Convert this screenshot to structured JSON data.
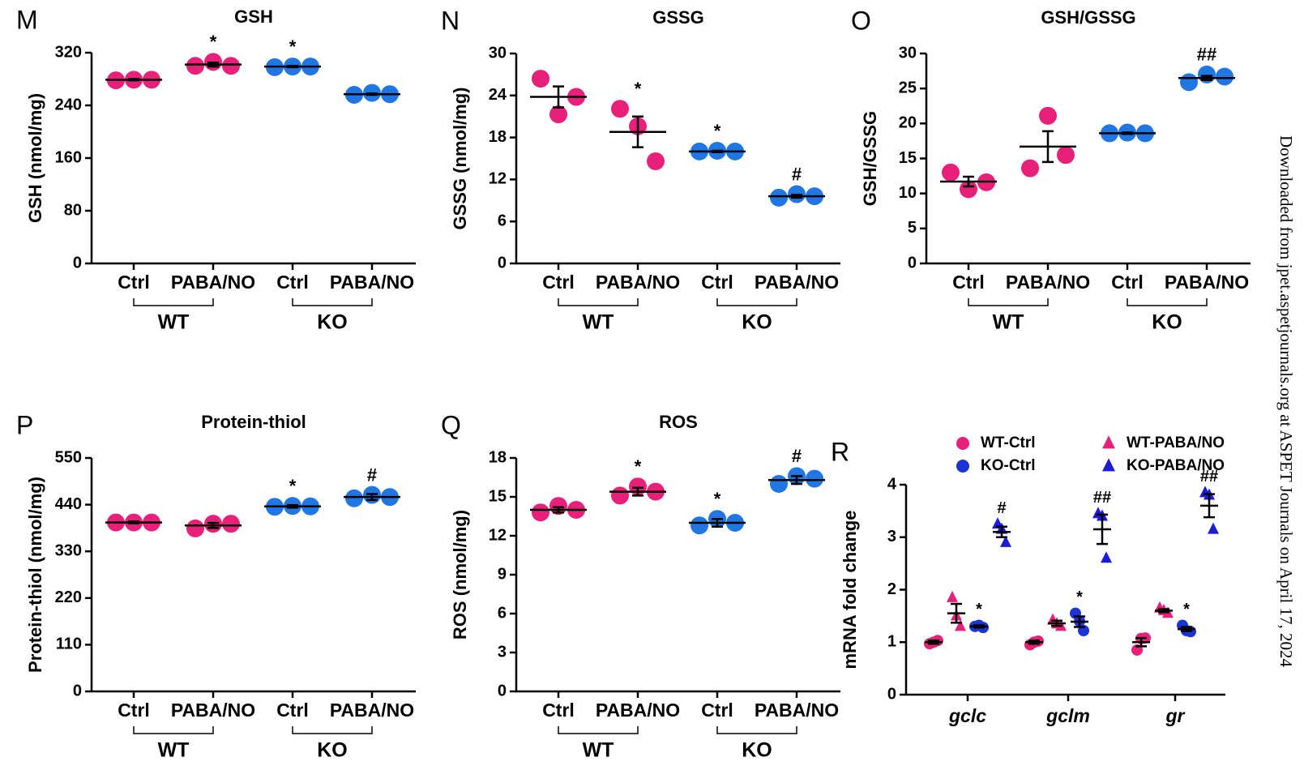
{
  "chart_data": [
    {
      "type": "dotplot",
      "panel": "M",
      "title": "GSH",
      "y_label": "GSH (nmol/mg)",
      "ylim": [
        0,
        320
      ],
      "yticks": [
        0,
        80,
        160,
        240,
        320
      ],
      "groups": [
        {
          "name": "WT",
          "color": "#e8207a",
          "categories": [
            "Ctrl",
            "PABA/NO"
          ],
          "points": [
            [
              278,
              279,
              279
            ],
            [
              300,
              306,
              300
            ]
          ],
          "mean": [
            279,
            302
          ],
          "sem": [
            1,
            3
          ],
          "marks": [
            null,
            "*"
          ]
        },
        {
          "name": "KO",
          "color": "#2077e4",
          "categories": [
            "Ctrl",
            "PABA/NO"
          ],
          "points": [
            [
              298,
              299,
              299
            ],
            [
              256,
              259,
              257
            ]
          ],
          "mean": [
            299,
            257
          ],
          "sem": [
            1,
            1
          ],
          "marks": [
            "*",
            null
          ]
        }
      ]
    },
    {
      "type": "dotplot",
      "panel": "N",
      "title": "GSSG",
      "y_label": "GSSG (nmol/mg)",
      "ylim": [
        0,
        30
      ],
      "yticks": [
        0,
        6,
        12,
        18,
        24,
        30
      ],
      "groups": [
        {
          "name": "WT",
          "color": "#e8207a",
          "categories": [
            "Ctrl",
            "PABA/NO"
          ],
          "points": [
            [
              26.4,
              21.3,
              23.8
            ],
            [
              22.1,
              19.6,
              14.6
            ]
          ],
          "mean": [
            23.8,
            18.8
          ],
          "sem": [
            1.5,
            2.2
          ],
          "marks": [
            null,
            "*"
          ]
        },
        {
          "name": "KO",
          "color": "#2077e4",
          "categories": [
            "Ctrl",
            "PABA/NO"
          ],
          "points": [
            [
              16.0,
              16.1,
              16.0
            ],
            [
              9.4,
              9.9,
              9.6
            ]
          ],
          "mean": [
            16.0,
            9.6
          ],
          "sem": [
            0.1,
            0.2
          ],
          "marks": [
            "*",
            "#"
          ]
        }
      ]
    },
    {
      "type": "dotplot",
      "panel": "O",
      "title": "GSH/GSSG",
      "y_label": "GSH/GSSG",
      "ylim": [
        0,
        30
      ],
      "yticks": [
        0,
        5,
        10,
        15,
        20,
        25,
        30
      ],
      "groups": [
        {
          "name": "WT",
          "color": "#e8207a",
          "categories": [
            "Ctrl",
            "PABA/NO"
          ],
          "points": [
            [
              13.0,
              10.6,
              11.6
            ],
            [
              13.6,
              21.1,
              15.5
            ]
          ],
          "mean": [
            11.7,
            16.7
          ],
          "sem": [
            0.7,
            2.2
          ],
          "marks": [
            null,
            null
          ]
        },
        {
          "name": "KO",
          "color": "#2077e4",
          "categories": [
            "Ctrl",
            "PABA/NO"
          ],
          "points": [
            [
              18.6,
              18.7,
              18.6
            ],
            [
              25.9,
              27.0,
              26.7
            ]
          ],
          "mean": [
            18.6,
            26.5
          ],
          "sem": [
            0.1,
            0.3
          ],
          "marks": [
            null,
            "##"
          ]
        }
      ]
    },
    {
      "type": "dotplot",
      "panel": "P",
      "title": "Protein-thiol",
      "y_label": "Protein-thiol (nmol/mg)",
      "ylim": [
        0,
        550
      ],
      "yticks": [
        0,
        110,
        220,
        330,
        440,
        550
      ],
      "groups": [
        {
          "name": "WT",
          "color": "#e8207a",
          "categories": [
            "Ctrl",
            "PABA/NO"
          ],
          "points": [
            [
              398,
              398,
              398
            ],
            [
              384,
              395,
              395
            ]
          ],
          "mean": [
            398,
            391
          ],
          "sem": [
            2,
            6
          ],
          "marks": [
            null,
            null
          ]
        },
        {
          "name": "KO",
          "color": "#2077e4",
          "categories": [
            "Ctrl",
            "PABA/NO"
          ],
          "points": [
            [
              435,
              437,
              436
            ],
            [
              455,
              463,
              458
            ]
          ],
          "mean": [
            436,
            458
          ],
          "sem": [
            3,
            7
          ],
          "marks": [
            "*",
            "#"
          ]
        }
      ]
    },
    {
      "type": "dotplot",
      "panel": "Q",
      "title": "ROS",
      "y_label": "ROS (nmol/mg)",
      "ylim": [
        0,
        18
      ],
      "yticks": [
        0,
        3,
        6,
        9,
        12,
        15,
        18
      ],
      "groups": [
        {
          "name": "WT",
          "color": "#e8207a",
          "categories": [
            "Ctrl",
            "PABA/NO"
          ],
          "points": [
            [
              13.8,
              14.3,
              14.0
            ],
            [
              15.1,
              15.8,
              15.4
            ]
          ],
          "mean": [
            14.0,
            15.4
          ],
          "sem": [
            0.2,
            0.3
          ],
          "marks": [
            null,
            "*"
          ]
        },
        {
          "name": "KO",
          "color": "#2077e4",
          "categories": [
            "Ctrl",
            "PABA/NO"
          ],
          "points": [
            [
              12.8,
              13.3,
              13.0
            ],
            [
              16.0,
              16.6,
              16.4
            ]
          ],
          "mean": [
            13.0,
            16.3
          ],
          "sem": [
            0.3,
            0.3
          ],
          "marks": [
            "*",
            "#"
          ]
        }
      ]
    },
    {
      "type": "grouped-dotplot",
      "panel": "R",
      "y_label": "mRNA fold change",
      "ylim": [
        0,
        4
      ],
      "yticks": [
        0,
        1,
        2,
        3,
        4
      ],
      "categories": [
        "gclc",
        "gclm",
        "gr"
      ],
      "series": [
        {
          "name": "WT-Ctrl",
          "color": "#e8207a",
          "marker": "circle",
          "points": [
            [
              0.97,
              1.03,
              1.0
            ],
            [
              0.95,
              1.02,
              1.0
            ],
            [
              0.85,
              1.08,
              1.07
            ]
          ],
          "mean": [
            1.0,
            1.0,
            1.0
          ],
          "sem": [
            0.03,
            0.03,
            0.08
          ],
          "marks": [
            null,
            null,
            null
          ]
        },
        {
          "name": "WT-PABA/NO",
          "color": "#e8207a",
          "marker": "triangle",
          "points": [
            [
              1.85,
              1.3,
              1.5
            ],
            [
              1.42,
              1.3,
              1.35
            ],
            [
              1.65,
              1.55,
              1.6
            ]
          ],
          "mean": [
            1.55,
            1.36,
            1.6
          ],
          "sem": [
            0.18,
            0.05,
            0.03
          ],
          "marks": [
            null,
            null,
            null
          ]
        },
        {
          "name": "KO-Ctrl",
          "color": "#1c33d6",
          "marker": "circle",
          "points": [
            [
              1.3,
              1.28,
              1.32
            ],
            [
              1.55,
              1.22,
              1.4
            ],
            [
              1.32,
              1.2,
              1.22
            ]
          ],
          "mean": [
            1.3,
            1.39,
            1.25
          ],
          "sem": [
            0.02,
            0.1,
            0.04
          ],
          "marks": [
            "*",
            "*",
            "*"
          ]
        },
        {
          "name": "KO-PABA/NO",
          "color": "#1c1cd6",
          "marker": "triangle",
          "points": [
            [
              3.25,
              2.9,
              3.15
            ],
            [
              3.45,
              2.6,
              3.4
            ],
            [
              3.85,
              3.15,
              3.8
            ]
          ],
          "mean": [
            3.1,
            3.15,
            3.6
          ],
          "sem": [
            0.1,
            0.28,
            0.22
          ],
          "marks": [
            "#",
            "##",
            "##"
          ]
        }
      ]
    }
  ],
  "watermark": "Downloaded from jpet.aspetjournals.org at ASPET Journals on April 17, 2024"
}
